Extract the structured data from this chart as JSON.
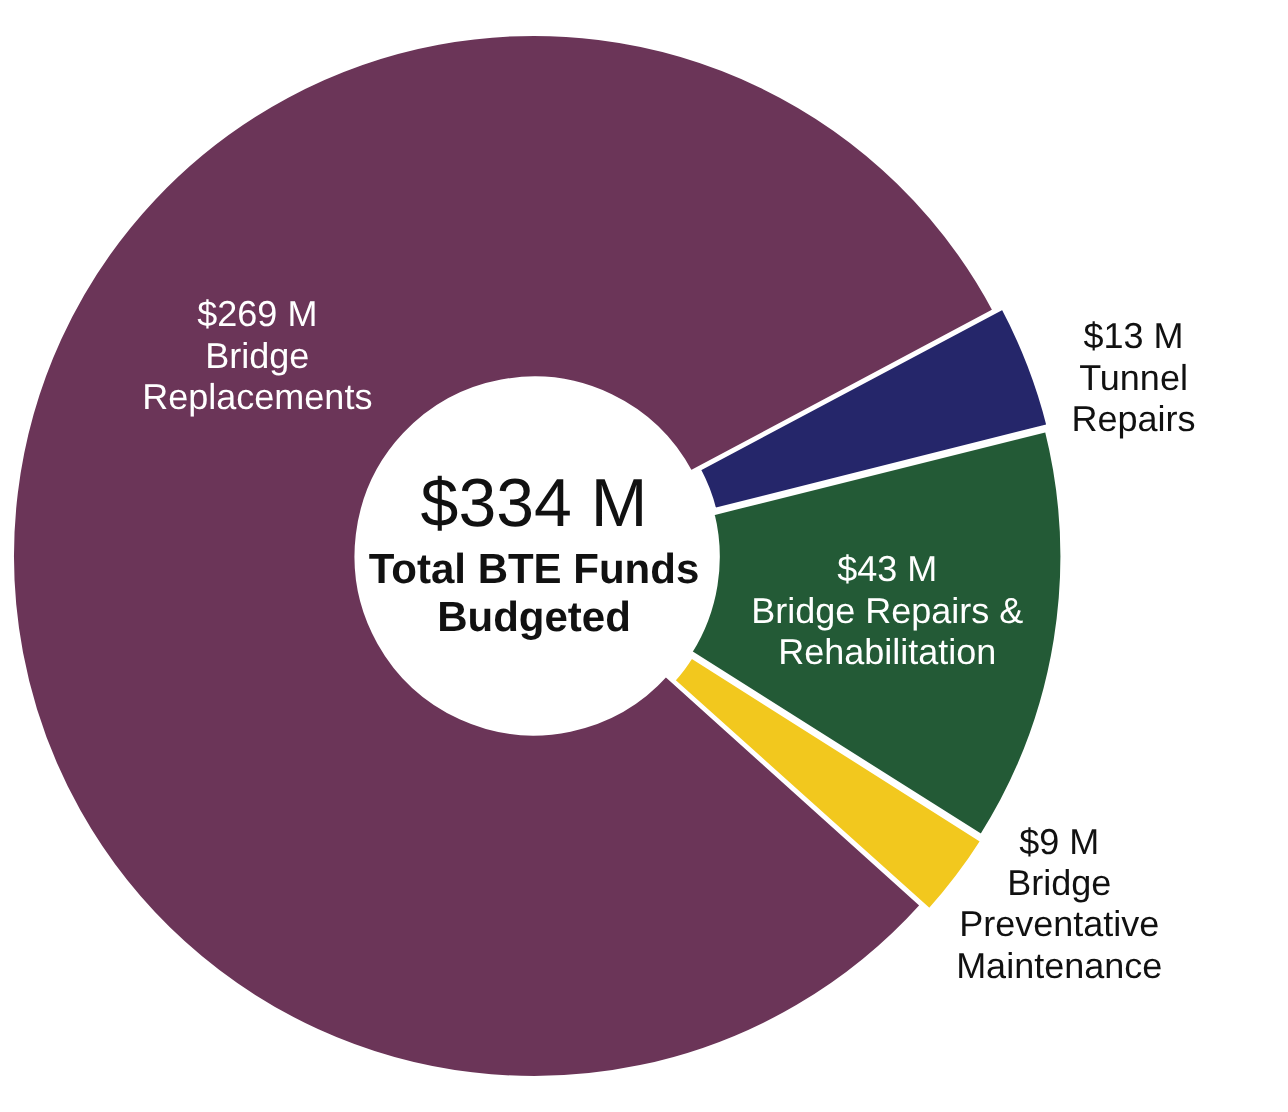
{
  "chart_data": {
    "type": "donut",
    "categories": [
      "Bridge Replacements",
      "Tunnel Repairs",
      "Bridge Repairs & Rehabilitation",
      "Bridge Preventative Maintenance"
    ],
    "values": [
      269,
      13,
      43,
      9
    ],
    "value_labels": [
      "$269 M",
      "$13 M",
      "$43 M",
      "$9 M"
    ],
    "colors": [
      "#6b3558",
      "#25266a",
      "#235a36",
      "#f2c81e"
    ],
    "annotations": [
      "$334 M",
      "Total BTE Funds Budgeted"
    ],
    "legend": false
  }
}
